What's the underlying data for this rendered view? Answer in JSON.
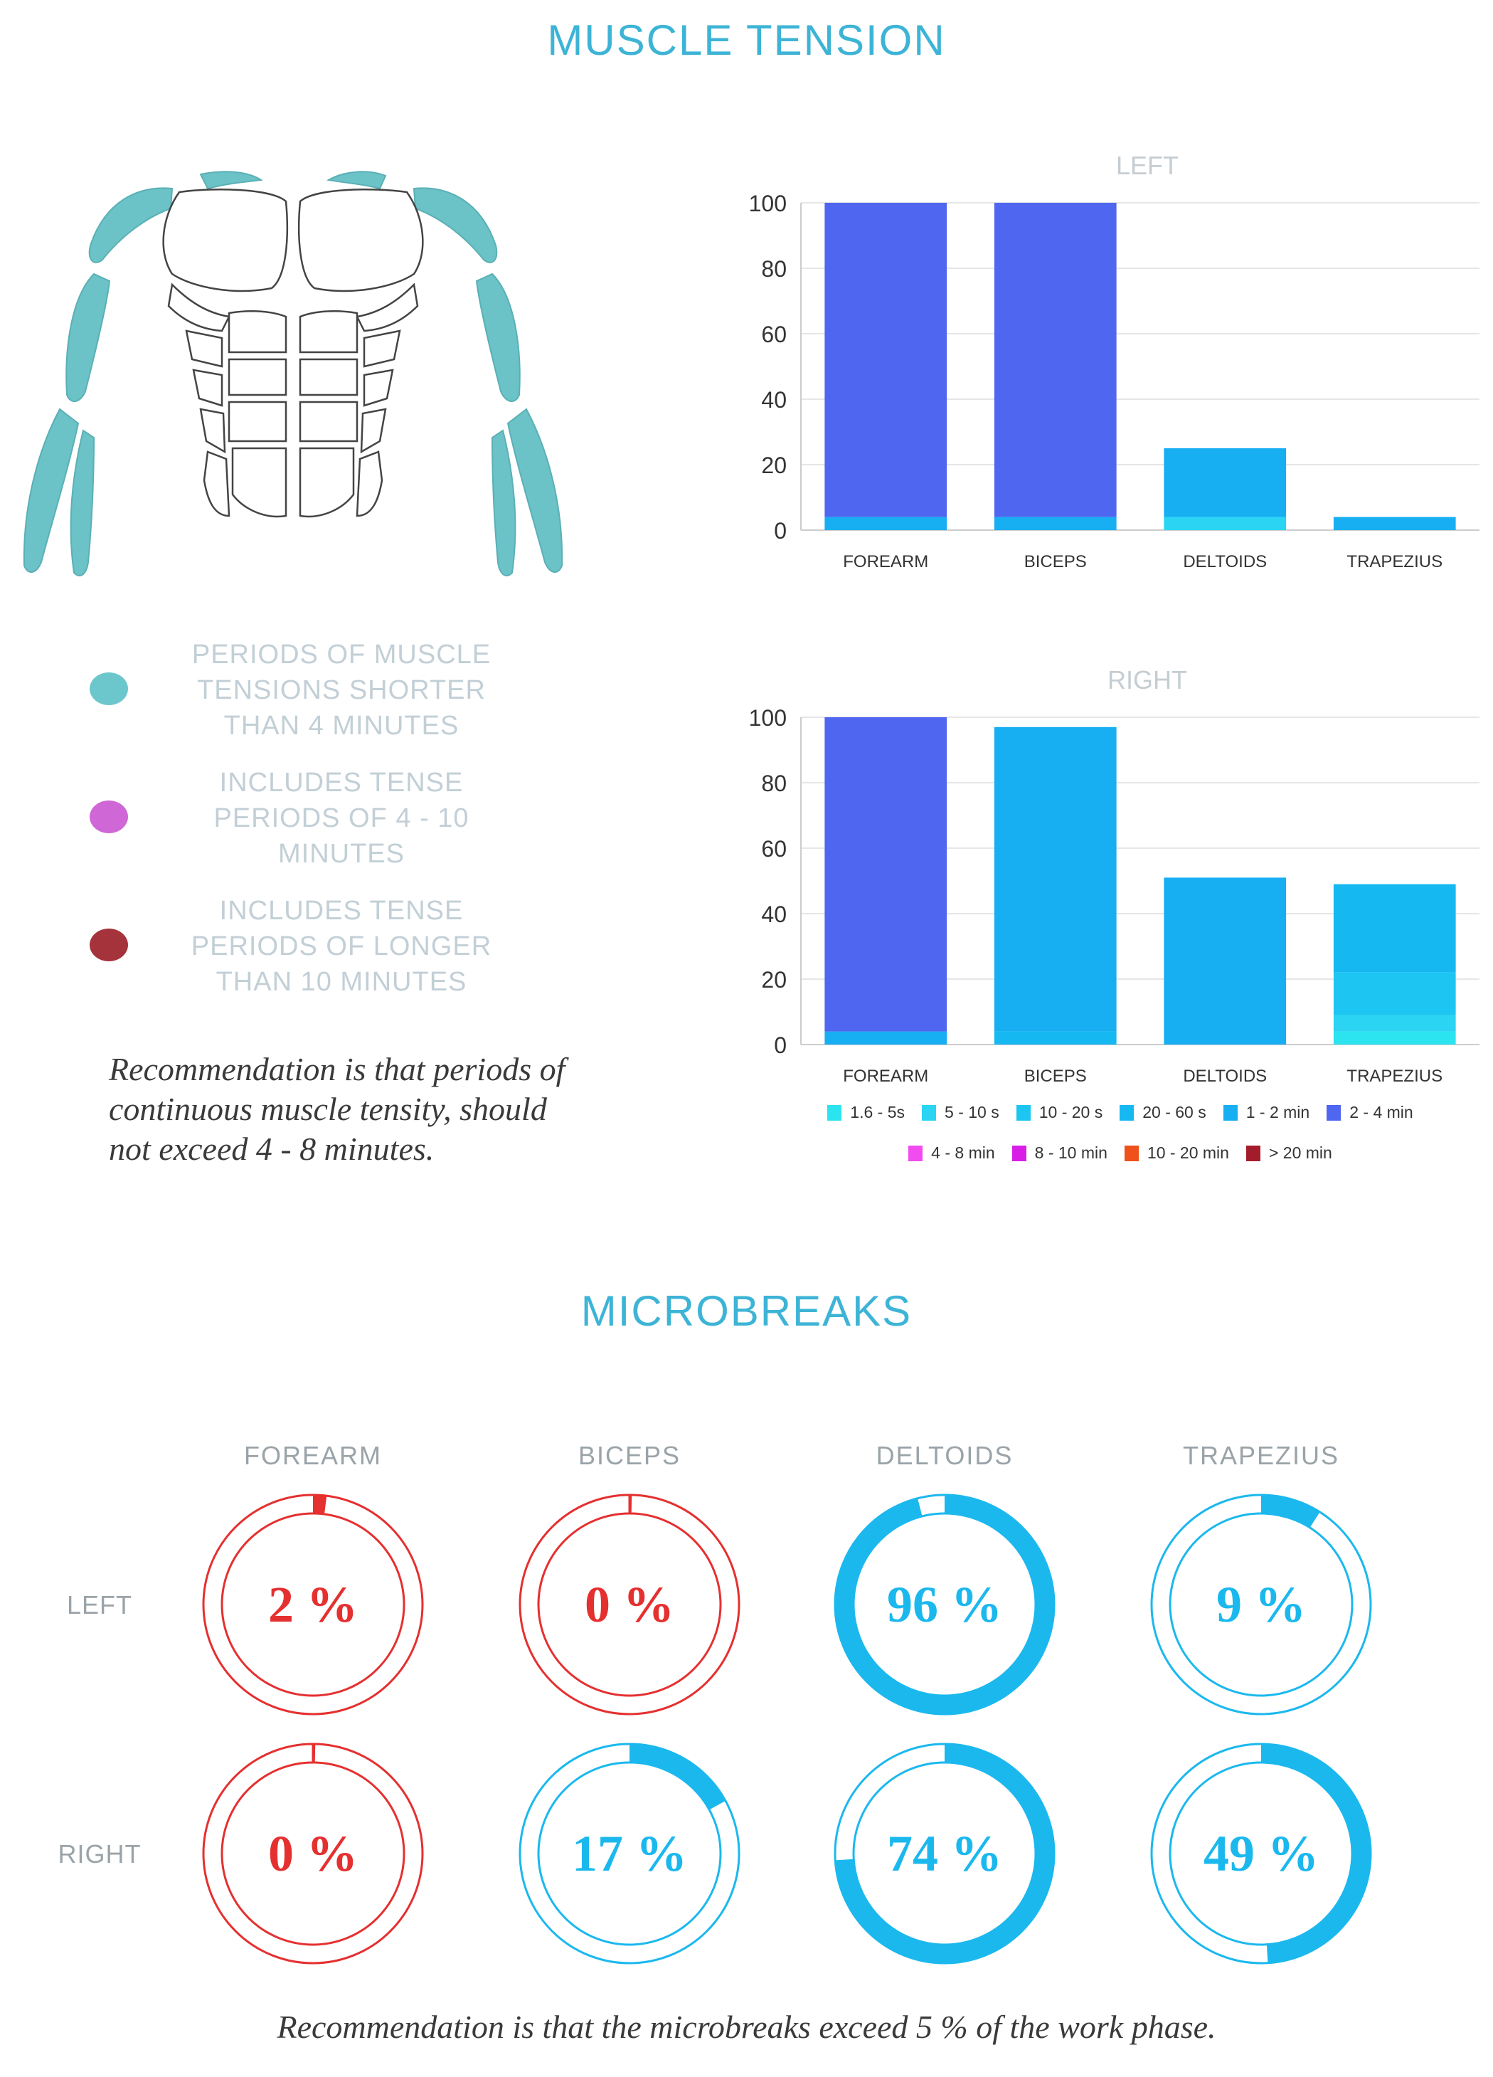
{
  "titles": {
    "muscle_tension": "MUSCLE TENSION",
    "microbreaks": "MICROBREAKS"
  },
  "colors": {
    "accent": "#3db4d6",
    "muscle_fill": "#6bc2c7",
    "warning_red": "#e53030",
    "ok_blue": "#1bb8ee"
  },
  "legend": [
    {
      "label": "PERIODS OF MUSCLE TENSIONS SHORTER THAN 4 MINUTES",
      "color": "#6cc7cc"
    },
    {
      "label": "INCLUDES TENSE PERIODS OF 4 - 10 MINUTES",
      "color": "#d067d6"
    },
    {
      "label": "INCLUDES TENSE PERIODS OF LONGER THAN 10 MINUTES",
      "color": "#a5333c"
    }
  ],
  "recommendation_muscle": "Recommendation is that periods of continuous muscle tensity, should not exceed 4 - 8 minutes.",
  "chart_data": [
    {
      "type": "bar",
      "stacked": true,
      "title": "LEFT",
      "categories": [
        "FOREARM",
        "BICEPS",
        "DELTOIDS",
        "TRAPEZIUS"
      ],
      "ylim": [
        0,
        100
      ],
      "yticks": [
        0,
        20,
        40,
        60,
        80,
        100
      ],
      "grid": true,
      "series": [
        {
          "name": "1.6 - 5s",
          "values": [
            0,
            0,
            0,
            0
          ],
          "color": "#2ce4f0"
        },
        {
          "name": "5 - 10 s",
          "values": [
            0,
            0,
            4,
            0
          ],
          "color": "#2ad4f2"
        },
        {
          "name": "10 - 20 s",
          "values": [
            0,
            0,
            0,
            0
          ],
          "color": "#1dc6f2"
        },
        {
          "name": "20 - 60 s",
          "values": [
            0,
            0,
            0,
            0
          ],
          "color": "#16b8f2"
        },
        {
          "name": "1 - 2 min",
          "values": [
            4,
            4,
            21,
            4
          ],
          "color": "#17aef2"
        },
        {
          "name": "2 - 4 min",
          "values": [
            96,
            96,
            0,
            0
          ],
          "color": "#4f66f0"
        },
        {
          "name": "4 - 8 min",
          "values": [
            0,
            0,
            0,
            0
          ],
          "color": "#f04cf0"
        },
        {
          "name": "8 - 10 min",
          "values": [
            0,
            0,
            0,
            0
          ],
          "color": "#d81ee6"
        },
        {
          "name": "10 - 20 min",
          "values": [
            0,
            0,
            0,
            0
          ],
          "color": "#f0501a"
        },
        {
          "name": "> 20 min",
          "values": [
            0,
            0,
            0,
            0
          ],
          "color": "#a31c2c"
        }
      ]
    },
    {
      "type": "bar",
      "stacked": true,
      "title": "RIGHT",
      "categories": [
        "FOREARM",
        "BICEPS",
        "DELTOIDS",
        "TRAPEZIUS"
      ],
      "ylim": [
        0,
        100
      ],
      "yticks": [
        0,
        20,
        40,
        60,
        80,
        100
      ],
      "grid": true,
      "series": [
        {
          "name": "1.6 - 5s",
          "values": [
            0,
            0,
            0,
            4
          ],
          "color": "#2ce4f0"
        },
        {
          "name": "5 - 10 s",
          "values": [
            0,
            0,
            0,
            5
          ],
          "color": "#2ad4f2"
        },
        {
          "name": "10 - 20 s",
          "values": [
            0,
            0,
            0,
            13
          ],
          "color": "#1dc6f2"
        },
        {
          "name": "20 - 60 s",
          "values": [
            0,
            4,
            0,
            27
          ],
          "color": "#16b8f2"
        },
        {
          "name": "1 - 2 min",
          "values": [
            4,
            93,
            51,
            0
          ],
          "color": "#17aef2"
        },
        {
          "name": "2 - 4 min",
          "values": [
            96,
            0,
            0,
            0
          ],
          "color": "#4f66f0"
        },
        {
          "name": "4 - 8 min",
          "values": [
            0,
            0,
            0,
            0
          ],
          "color": "#f04cf0"
        },
        {
          "name": "8 - 10 min",
          "values": [
            0,
            0,
            0,
            0
          ],
          "color": "#d81ee6"
        },
        {
          "name": "10 - 20 min",
          "values": [
            0,
            0,
            0,
            0
          ],
          "color": "#f0501a"
        },
        {
          "name": "> 20 min",
          "values": [
            0,
            0,
            0,
            0
          ],
          "color": "#a31c2c"
        }
      ]
    }
  ],
  "microbreaks": {
    "columns": [
      "FOREARM",
      "BICEPS",
      "DELTOIDS",
      "TRAPEZIUS"
    ],
    "rows": [
      {
        "label": "LEFT",
        "values": [
          2,
          0,
          96,
          9
        ],
        "texts": [
          "2 %",
          "0 %",
          "96 %",
          "9 %"
        ]
      },
      {
        "label": "RIGHT",
        "values": [
          0,
          17,
          74,
          49
        ],
        "texts": [
          "0 %",
          "17 %",
          "74 %",
          "49 %"
        ]
      }
    ],
    "threshold": 5
  },
  "recommendation_micro": "Recommendation is that the microbreaks exceed 5 % of the work phase."
}
